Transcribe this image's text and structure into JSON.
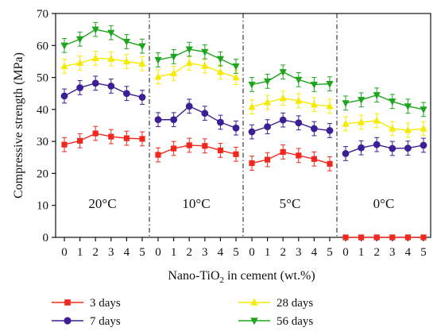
{
  "chart_data": {
    "type": "line",
    "ylabel": "Compressive strength (MPa)",
    "xlabel": {
      "main": "Nano-TiO",
      "subscript": "2",
      "suffix": " in cement (wt.%)"
    },
    "ylim": [
      0,
      70
    ],
    "yticks": [
      "0",
      "10",
      "20",
      "30",
      "40",
      "50",
      "60",
      "70"
    ],
    "xticks": [
      "0",
      "1",
      "2",
      "3",
      "4",
      "5"
    ],
    "panels": [
      {
        "label": "20°C",
        "series": {
          "3 days": [
            29,
            30.2,
            32.5,
            31.5,
            31,
            30.8
          ],
          "7 days": [
            44.2,
            46.8,
            48.2,
            47.3,
            45,
            43.8
          ],
          "28 days": [
            53.5,
            54.5,
            56,
            55.8,
            55,
            54.3
          ],
          "56 days": [
            60,
            62,
            65,
            64,
            61.2,
            59.8
          ]
        }
      },
      {
        "label": "10°C",
        "series": {
          "3 days": [
            25.8,
            27.8,
            28.8,
            28.6,
            27.2,
            26
          ],
          "7 days": [
            36.8,
            36.8,
            41,
            38.8,
            36,
            34.2
          ],
          "28 days": [
            50.2,
            51.3,
            54.5,
            53.6,
            51.7,
            50
          ],
          "56 days": [
            55.5,
            56.5,
            58.8,
            58,
            55.8,
            53.5
          ]
        }
      },
      {
        "label": "5°C",
        "series": {
          "3 days": [
            23.2,
            24.3,
            26.7,
            25.6,
            24.5,
            23
          ],
          "7 days": [
            33,
            34.6,
            36.7,
            35.8,
            34,
            33.4
          ],
          "28 days": [
            40.8,
            42.2,
            43.5,
            42.7,
            41.5,
            41
          ],
          "56 days": [
            47.8,
            48.8,
            51.7,
            49.3,
            47.8,
            48
          ]
        }
      },
      {
        "label": "0°C",
        "series": {
          "3 days": [
            0,
            0,
            0,
            0,
            0,
            0
          ],
          "7 days": [
            26.2,
            28,
            29,
            27.8,
            27.9,
            28.8
          ],
          "28 days": [
            35.5,
            36,
            36.5,
            34,
            33.5,
            34
          ],
          "56 days": [
            42,
            43,
            44.5,
            42.5,
            41,
            40
          ]
        }
      }
    ],
    "legend": [
      {
        "name": "3 days",
        "marker": "square",
        "color": "#f0281e"
      },
      {
        "name": "7 days",
        "marker": "circle",
        "color": "#3c1e96"
      },
      {
        "name": "28 days",
        "marker": "triangle-up",
        "color": "#f5eb00"
      },
      {
        "name": "56 days",
        "marker": "triangle-down",
        "color": "#1ea51e"
      }
    ],
    "grid": false,
    "legend_placement": "bottom"
  }
}
